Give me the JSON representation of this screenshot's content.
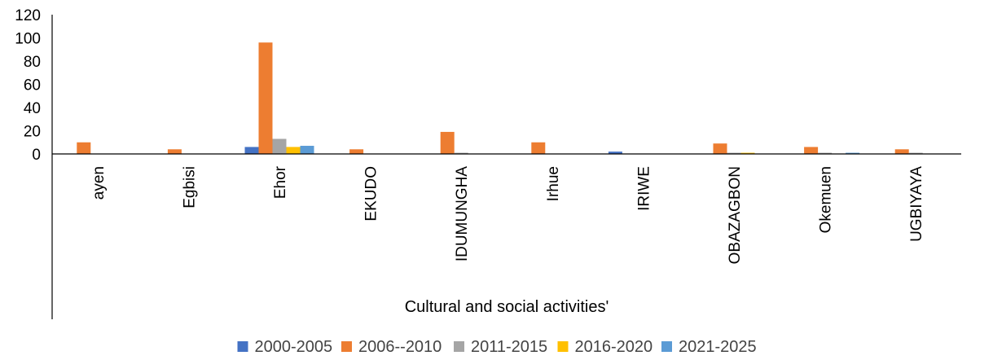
{
  "chart_data": {
    "type": "bar",
    "title": "",
    "xlabel": "Cultural and social activities'",
    "ylabel": "",
    "ylim": [
      0,
      120
    ],
    "yticks": [
      0,
      20,
      40,
      60,
      80,
      100,
      120
    ],
    "grid": false,
    "legend_position": "bottom",
    "categories": [
      "ayen",
      "Egbisi",
      "Ehor",
      "EKUDO",
      "IDUMUNGHA",
      "Irhue",
      "IRIWE",
      "OBAZAGBON",
      "Okemuen",
      "UGBIYAYA"
    ],
    "series": [
      {
        "name": "2000-2005",
        "color": "#4472C4",
        "values": [
          0,
          0,
          6,
          0,
          0,
          0,
          2,
          0,
          0,
          0
        ]
      },
      {
        "name": "2006--2010",
        "color": "#ED7D31",
        "values": [
          10,
          4,
          96,
          4,
          19,
          10,
          0,
          9,
          6,
          4
        ]
      },
      {
        "name": "2011-2015",
        "color": "#A5A5A5",
        "values": [
          0,
          0,
          13,
          0,
          1,
          0,
          0,
          1,
          1,
          1
        ]
      },
      {
        "name": "2016-2020",
        "color": "#FFC000",
        "values": [
          0,
          0,
          6,
          0,
          0,
          0,
          0,
          1,
          0,
          0
        ]
      },
      {
        "name": "2021-2025",
        "color": "#5B9BD5",
        "values": [
          0,
          0,
          7,
          0,
          0,
          0,
          0,
          0,
          1,
          0
        ]
      }
    ]
  }
}
